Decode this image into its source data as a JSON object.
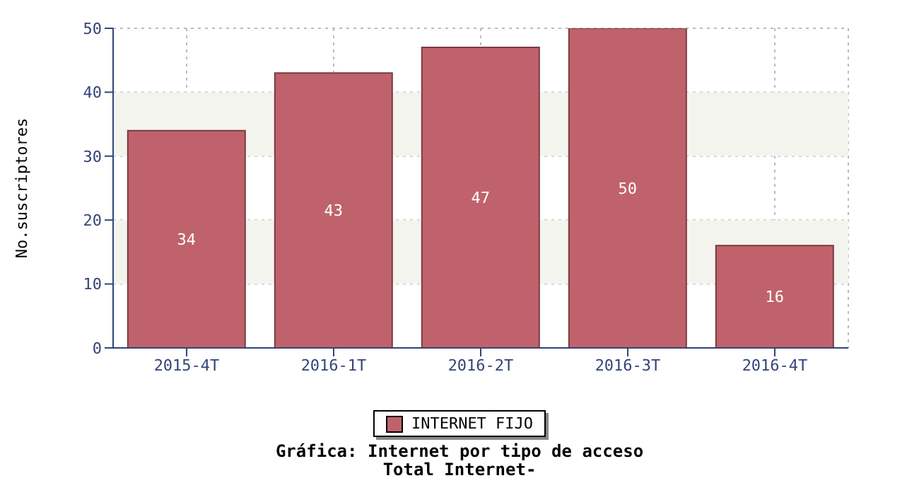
{
  "chart_data": {
    "type": "bar",
    "title": "Gráfica: Internet por tipo de acceso",
    "subtitle": "Total Internet-",
    "ylabel": "No.suscriptores",
    "categories": [
      "2015-4T",
      "2016-1T",
      "2016-2T",
      "2016-3T",
      "2016-4T"
    ],
    "series": [
      {
        "name": "INTERNET FIJO",
        "color": "#c0626b",
        "values": [
          34,
          43,
          47,
          50,
          16
        ]
      }
    ],
    "ylim": [
      0,
      50
    ],
    "yticks": [
      0,
      10,
      20,
      30,
      40,
      50
    ],
    "grid": true,
    "legend": "bottom",
    "data_labels": true,
    "bands": [
      {
        "axis": "y",
        "from": 10,
        "to": 20,
        "color": "#f4f4ef"
      },
      {
        "axis": "y",
        "from": 30,
        "to": 40,
        "color": "#f4f4ef"
      }
    ]
  }
}
